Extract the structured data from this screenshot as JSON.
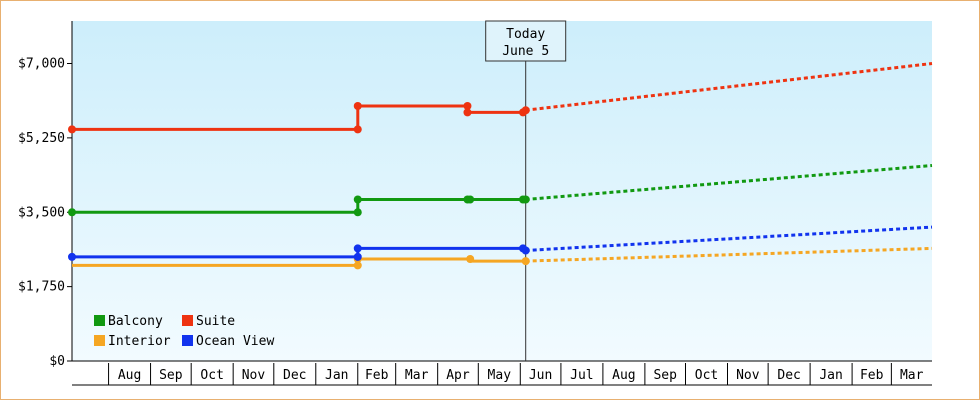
{
  "chart_data": {
    "type": "line",
    "ylim": [
      0,
      8000
    ],
    "yticks": [
      {
        "value": 0,
        "label": "$0"
      },
      {
        "value": 1750,
        "label": "$1,750"
      },
      {
        "value": 3500,
        "label": "$3,500"
      },
      {
        "value": 5250,
        "label": "$5,250"
      },
      {
        "value": 7000,
        "label": "$7,000"
      }
    ],
    "x_start": "2023-07-05",
    "x_end": "2024-03-31",
    "today": "2023-06-05",
    "today_label": [
      "Today",
      "June 5"
    ],
    "month_labels": [
      "Aug",
      "Sep",
      "Oct",
      "Nov",
      "Dec",
      "Jan",
      "Feb",
      "Mar",
      "Apr",
      "May",
      "Jun",
      "Jul",
      "Aug",
      "Sep",
      "Oct",
      "Nov",
      "Dec",
      "Jan",
      "Feb",
      "Mar"
    ],
    "series": [
      {
        "name": "Balcony",
        "color": "#119911",
        "history": [
          [
            "2022-07-05",
            3500
          ],
          [
            "2023-02-01",
            3500
          ],
          [
            "2023-02-01",
            3800
          ],
          [
            "2023-04-23",
            3800
          ],
          [
            "2023-04-25",
            3800
          ],
          [
            "2023-06-03",
            3800
          ],
          [
            "2023-06-05",
            3800
          ]
        ],
        "forecast": [
          [
            "2023-06-05",
            3800
          ],
          [
            "2024-03-31",
            4600
          ]
        ]
      },
      {
        "name": "Suite",
        "color": "#ee3311",
        "history": [
          [
            "2022-07-05",
            5450
          ],
          [
            "2023-02-01",
            5450
          ],
          [
            "2023-02-01",
            6000
          ],
          [
            "2023-04-23",
            6000
          ],
          [
            "2023-04-23",
            5850
          ],
          [
            "2023-06-03",
            5850
          ],
          [
            "2023-06-05",
            5900
          ]
        ],
        "forecast": [
          [
            "2023-06-05",
            5900
          ],
          [
            "2024-03-31",
            7000
          ]
        ]
      },
      {
        "name": "Interior",
        "color": "#f5a623",
        "history": [
          [
            "2022-07-05",
            2250
          ],
          [
            "2023-02-01",
            2250
          ],
          [
            "2023-02-01",
            2400
          ],
          [
            "2023-04-25",
            2400
          ],
          [
            "2023-04-25",
            2350
          ],
          [
            "2023-06-05",
            2350
          ]
        ],
        "forecast": [
          [
            "2023-06-05",
            2350
          ],
          [
            "2024-03-31",
            2650
          ]
        ]
      },
      {
        "name": "Ocean View",
        "color": "#1133ee",
        "history": [
          [
            "2022-07-05",
            2450
          ],
          [
            "2023-02-01",
            2450
          ],
          [
            "2023-02-01",
            2650
          ],
          [
            "2023-06-03",
            2650
          ],
          [
            "2023-06-05",
            2600
          ]
        ],
        "forecast": [
          [
            "2023-06-05",
            2600
          ],
          [
            "2024-03-31",
            3150
          ]
        ]
      }
    ],
    "markers": [
      {
        "series": "Balcony",
        "points": [
          [
            "2022-07-05",
            3500
          ],
          [
            "2023-02-01",
            3500
          ],
          [
            "2023-02-01",
            3800
          ],
          [
            "2023-04-23",
            3800
          ],
          [
            "2023-04-25",
            3800
          ],
          [
            "2023-06-03",
            3800
          ],
          [
            "2023-06-05",
            3800
          ]
        ]
      },
      {
        "series": "Suite",
        "points": [
          [
            "2022-07-05",
            5450
          ],
          [
            "2023-02-01",
            5450
          ],
          [
            "2023-02-01",
            6000
          ],
          [
            "2023-04-23",
            6000
          ],
          [
            "2023-04-23",
            5850
          ],
          [
            "2023-06-03",
            5850
          ],
          [
            "2023-06-05",
            5900
          ]
        ]
      },
      {
        "series": "Interior",
        "points": [
          [
            "2023-02-01",
            2250
          ],
          [
            "2023-02-01",
            2400
          ],
          [
            "2023-04-25",
            2400
          ],
          [
            "2023-06-05",
            2350
          ]
        ]
      },
      {
        "series": "Ocean View",
        "points": [
          [
            "2022-07-05",
            2450
          ],
          [
            "2023-02-01",
            2450
          ],
          [
            "2023-02-01",
            2650
          ],
          [
            "2023-06-03",
            2650
          ],
          [
            "2023-06-05",
            2600
          ]
        ]
      }
    ],
    "legend": {
      "placement": "bottom-left",
      "entries": [
        {
          "name": "Balcony",
          "color": "#119911"
        },
        {
          "name": "Suite",
          "color": "#ee3311"
        },
        {
          "name": "Interior",
          "color": "#f5a623"
        },
        {
          "name": "Ocean View",
          "color": "#1133ee"
        }
      ]
    },
    "colors": {
      "frame": "#e8b070",
      "plot_top": "#cdeefb",
      "plot_bottom": "#f2fbff",
      "axis": "#000000"
    }
  }
}
